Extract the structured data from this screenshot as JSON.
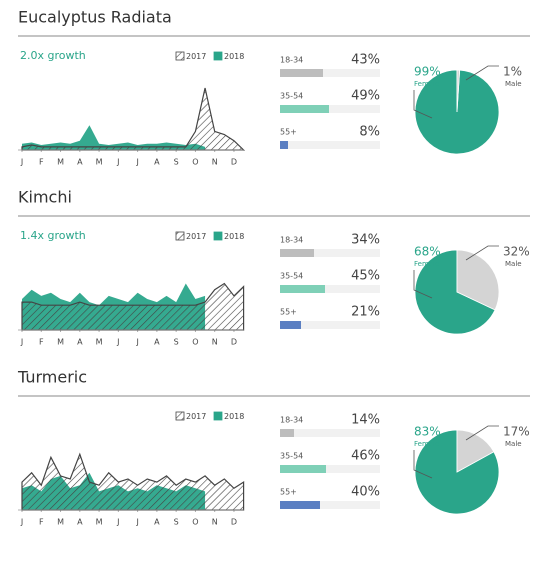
{
  "chart_data": [
    {
      "type": "area",
      "title": "Eucalyptus Radiata",
      "subtitle": "2.0x growth",
      "x": [
        0,
        0.5,
        1,
        1.5,
        2,
        2.5,
        3,
        3.5,
        4,
        4.5,
        5,
        5.5,
        6,
        6.5,
        7,
        7.5,
        8,
        8.5,
        9,
        9.5,
        10,
        10.5,
        11,
        11.5
      ],
      "xlim": [
        0,
        11.5
      ],
      "ylim": [
        0,
        100
      ],
      "xticks": [
        {
          "value": 0,
          "label": "J"
        },
        {
          "value": 1,
          "label": "F"
        },
        {
          "value": 2,
          "label": "M"
        },
        {
          "value": 3,
          "label": "A"
        },
        {
          "value": 4,
          "label": "M"
        },
        {
          "value": 5,
          "label": "J"
        },
        {
          "value": 6,
          "label": "J"
        },
        {
          "value": 7,
          "label": "A"
        },
        {
          "value": 8,
          "label": "S"
        },
        {
          "value": 9,
          "label": "O"
        },
        {
          "value": 10,
          "label": "N"
        },
        {
          "value": 11,
          "label": "D"
        }
      ],
      "series": [
        {
          "name": "2017",
          "color": "#444444",
          "pattern": "hatch",
          "values": [
            5,
            8,
            5,
            5,
            5,
            5,
            5,
            5,
            5,
            5,
            5,
            5,
            5,
            5,
            5,
            5,
            5,
            5,
            30,
            100,
            30,
            25,
            15,
            0
          ]
        },
        {
          "name": "2018",
          "color": "#2aa58a",
          "values": [
            10,
            12,
            8,
            10,
            12,
            10,
            15,
            40,
            10,
            8,
            10,
            12,
            8,
            10,
            10,
            12,
            10,
            8,
            10,
            5,
            null,
            null,
            null,
            null
          ]
        }
      ]
    },
    {
      "type": "hbar",
      "categories": [
        "18-34",
        "35-54",
        "55+"
      ],
      "values": [
        43,
        49,
        8
      ],
      "value_labels": [
        "43%",
        "49%",
        "8%"
      ],
      "colors": [
        "#bdbdbd",
        "#7fd0b7",
        "#5b7fc2"
      ],
      "xlim": [
        0,
        100
      ]
    },
    {
      "type": "pie",
      "categories": [
        "Female",
        "Male"
      ],
      "values": [
        99,
        1
      ],
      "value_labels": [
        "99%",
        "1%"
      ],
      "colors": [
        "#2aa58a",
        "#d4d4d4"
      ]
    },
    {
      "type": "area",
      "title": "Kimchi",
      "subtitle": "1.4x growth",
      "x": [
        0,
        0.5,
        1,
        1.5,
        2,
        2.5,
        3,
        3.5,
        4,
        4.5,
        5,
        5.5,
        6,
        6.5,
        7,
        7.5,
        8,
        8.5,
        9,
        9.5,
        10,
        10.5,
        11,
        11.5
      ],
      "xlim": [
        0,
        11.5
      ],
      "ylim": [
        0,
        100
      ],
      "xticks": [
        {
          "value": 0,
          "label": "J"
        },
        {
          "value": 1,
          "label": "F"
        },
        {
          "value": 2,
          "label": "M"
        },
        {
          "value": 3,
          "label": "A"
        },
        {
          "value": 4,
          "label": "M"
        },
        {
          "value": 5,
          "label": "J"
        },
        {
          "value": 6,
          "label": "J"
        },
        {
          "value": 7,
          "label": "A"
        },
        {
          "value": 8,
          "label": "S"
        },
        {
          "value": 9,
          "label": "O"
        },
        {
          "value": 10,
          "label": "N"
        },
        {
          "value": 11,
          "label": "D"
        }
      ],
      "series": [
        {
          "name": "2017",
          "color": "#444444",
          "pattern": "hatch",
          "values": [
            45,
            45,
            40,
            40,
            40,
            40,
            45,
            40,
            40,
            40,
            40,
            40,
            40,
            40,
            40,
            40,
            40,
            40,
            40,
            45,
            65,
            75,
            55,
            70
          ]
        },
        {
          "name": "2018",
          "color": "#2aa58a",
          "values": [
            50,
            65,
            55,
            60,
            50,
            45,
            60,
            45,
            40,
            55,
            50,
            45,
            60,
            50,
            45,
            55,
            45,
            75,
            50,
            55,
            null,
            null,
            null,
            null
          ]
        }
      ]
    },
    {
      "type": "hbar",
      "categories": [
        "18-34",
        "35-54",
        "55+"
      ],
      "values": [
        34,
        45,
        21
      ],
      "value_labels": [
        "34%",
        "45%",
        "21%"
      ],
      "colors": [
        "#bdbdbd",
        "#7fd0b7",
        "#5b7fc2"
      ],
      "xlim": [
        0,
        100
      ]
    },
    {
      "type": "pie",
      "categories": [
        "Female",
        "Male"
      ],
      "values": [
        68,
        32
      ],
      "value_labels": [
        "68%",
        "32%"
      ],
      "colors": [
        "#2aa58a",
        "#d4d4d4"
      ]
    },
    {
      "type": "area",
      "title": "Turmeric",
      "x": [
        0,
        0.5,
        1,
        1.5,
        2,
        2.5,
        3,
        3.5,
        4,
        4.5,
        5,
        5.5,
        6,
        6.5,
        7,
        7.5,
        8,
        8.5,
        9,
        9.5,
        10,
        10.5,
        11,
        11.5
      ],
      "xlim": [
        0,
        11.5
      ],
      "ylim": [
        0,
        100
      ],
      "xticks": [
        {
          "value": 0,
          "label": "J"
        },
        {
          "value": 1,
          "label": "F"
        },
        {
          "value": 2,
          "label": "M"
        },
        {
          "value": 3,
          "label": "A"
        },
        {
          "value": 4,
          "label": "M"
        },
        {
          "value": 5,
          "label": "J"
        },
        {
          "value": 6,
          "label": "J"
        },
        {
          "value": 7,
          "label": "A"
        },
        {
          "value": 8,
          "label": "S"
        },
        {
          "value": 9,
          "label": "O"
        },
        {
          "value": 10,
          "label": "N"
        },
        {
          "value": 11,
          "label": "D"
        }
      ],
      "series": [
        {
          "name": "2017",
          "color": "#444444",
          "pattern": "hatch",
          "values": [
            45,
            60,
            40,
            85,
            55,
            50,
            90,
            45,
            40,
            60,
            45,
            50,
            40,
            50,
            45,
            55,
            40,
            50,
            45,
            55,
            40,
            50,
            35,
            45
          ]
        },
        {
          "name": "2018",
          "color": "#2aa58a",
          "values": [
            35,
            40,
            30,
            50,
            55,
            35,
            40,
            60,
            30,
            35,
            40,
            30,
            35,
            30,
            40,
            35,
            30,
            40,
            35,
            30,
            null,
            null,
            null,
            null
          ]
        }
      ]
    },
    {
      "type": "hbar",
      "categories": [
        "18-34",
        "35-54",
        "55+"
      ],
      "values": [
        14,
        46,
        40
      ],
      "value_labels": [
        "14%",
        "46%",
        "40%"
      ],
      "colors": [
        "#bdbdbd",
        "#7fd0b7",
        "#5b7fc2"
      ],
      "xlim": [
        0,
        100
      ]
    },
    {
      "type": "pie",
      "categories": [
        "Female",
        "Male"
      ],
      "values": [
        83,
        17
      ],
      "value_labels": [
        "83%",
        "17%"
      ],
      "colors": [
        "#2aa58a",
        "#d4d4d4"
      ]
    }
  ]
}
